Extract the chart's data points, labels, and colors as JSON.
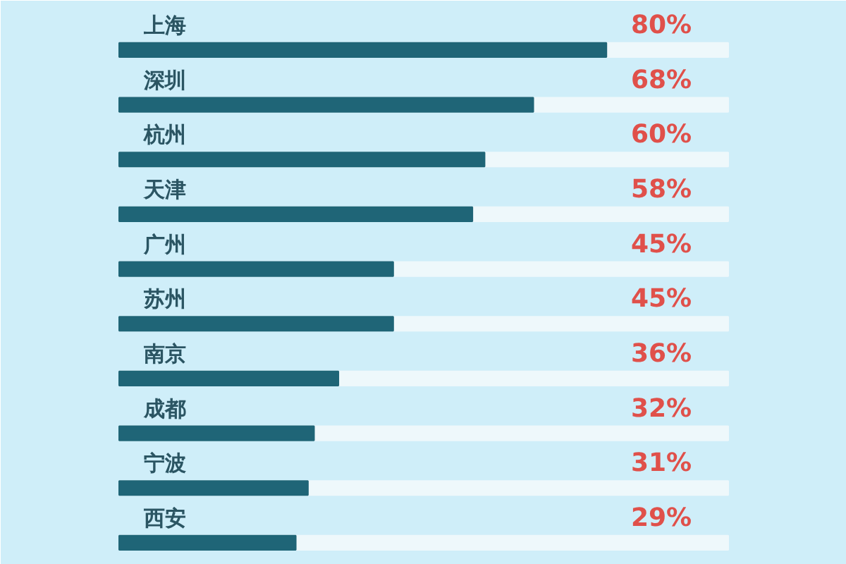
{
  "chart_data": {
    "type": "bar",
    "orientation": "horizontal",
    "categories": [
      "上海",
      "深圳",
      "杭州",
      "天津",
      "广州",
      "苏州",
      "南京",
      "成都",
      "宁波",
      "西安"
    ],
    "values": [
      80,
      68,
      60,
      58,
      45,
      45,
      36,
      32,
      31,
      29
    ],
    "value_labels": [
      "80%",
      "68%",
      "60%",
      "58%",
      "45%",
      "45%",
      "36%",
      "32%",
      "31%",
      "29%"
    ],
    "color": "#1f6577",
    "xlim": [
      0,
      100
    ]
  }
}
